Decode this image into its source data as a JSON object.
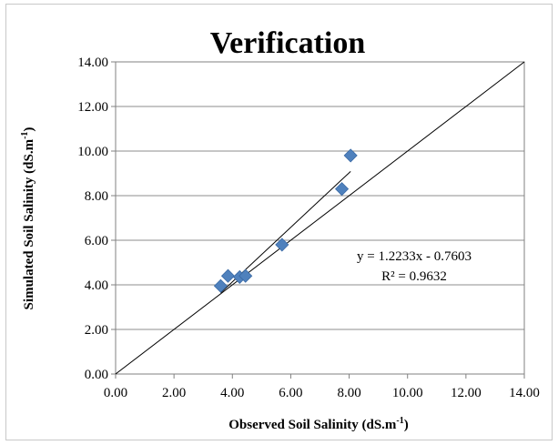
{
  "chart_data": {
    "type": "scatter",
    "title": "Verification",
    "xlabel": "Observed Soil Salinity (dS.m",
    "xlabel_sup": "-1",
    "xlabel_end": ")",
    "ylabel": "Simulated Soil Salinity (dS.m",
    "ylabel_sup": "-1",
    "ylabel_end": ")",
    "xlim": [
      0,
      14
    ],
    "ylim": [
      0,
      14
    ],
    "xticks": [
      "0.00",
      "2.00",
      "4.00",
      "6.00",
      "8.00",
      "10.00",
      "12.00",
      "14.00"
    ],
    "yticks": [
      "0.00",
      "2.00",
      "4.00",
      "6.00",
      "8.00",
      "10.00",
      "12.00",
      "14.00"
    ],
    "grid": "horizontal",
    "marker_color": "#4f81bd",
    "points": [
      {
        "x": 3.6,
        "y": 3.95
      },
      {
        "x": 3.85,
        "y": 4.4
      },
      {
        "x": 4.25,
        "y": 4.35
      },
      {
        "x": 4.45,
        "y": 4.4
      },
      {
        "x": 5.7,
        "y": 5.8
      },
      {
        "x": 7.75,
        "y": 8.3
      },
      {
        "x": 8.05,
        "y": 9.8
      }
    ],
    "trendline": {
      "slope": 1.2233,
      "intercept": -0.7603,
      "x_range": [
        3.6,
        8.05
      ]
    },
    "reference_line": {
      "from": [
        0,
        0
      ],
      "to": [
        14,
        14
      ]
    },
    "equation_text": "y = 1.2233x - 0.7603",
    "r2_text": "R² = 0.9632"
  }
}
